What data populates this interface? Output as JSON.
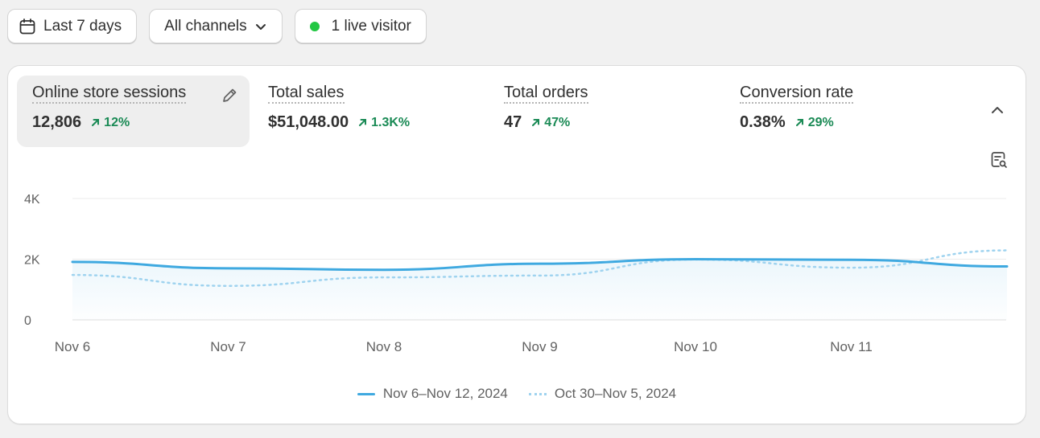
{
  "toolbar": {
    "date_range_label": "Last 7 days",
    "channels_label": "All channels",
    "live_label": "1 live visitor",
    "live_dot_color": "#22c743"
  },
  "metrics": [
    {
      "label": "Online store sessions",
      "value": "12,806",
      "change": "12%",
      "selected": true
    },
    {
      "label": "Total sales",
      "value": "$51,048.00",
      "change": "1.3K%"
    },
    {
      "label": "Total orders",
      "value": "47",
      "change": "47%"
    },
    {
      "label": "Conversion rate",
      "value": "0.38%",
      "change": "29%"
    }
  ],
  "icons": {
    "calendar": "calendar-icon",
    "chevron_down": "chevron-down-icon",
    "pencil": "pencil-icon",
    "collapse": "chevron-up-icon",
    "insight": "chart-insight-icon",
    "trend_up": "arrow-up-right-icon"
  },
  "colors": {
    "current_series": "#3fa9e0",
    "previous_series": "#9fd3ef",
    "positive_change": "#1a8a55"
  },
  "chart_data": {
    "type": "line",
    "x": [
      "Nov 6",
      "Nov 7",
      "Nov 8",
      "Nov 9",
      "Nov 10",
      "Nov 11",
      ""
    ],
    "y_ticks": [
      "0",
      "2K",
      "4K"
    ],
    "ylim": [
      0,
      4000
    ],
    "grid": true,
    "legend_placement": "bottom-center",
    "series": [
      {
        "name": "Nov 6–Nov 12, 2024",
        "style": "solid",
        "values": [
          1910,
          1700,
          1650,
          1850,
          2000,
          1980,
          1760
        ]
      },
      {
        "name": "Oct 30–Nov 5, 2024",
        "style": "dotted",
        "values": [
          1480,
          1120,
          1400,
          1460,
          1990,
          1720,
          2290
        ]
      }
    ]
  }
}
